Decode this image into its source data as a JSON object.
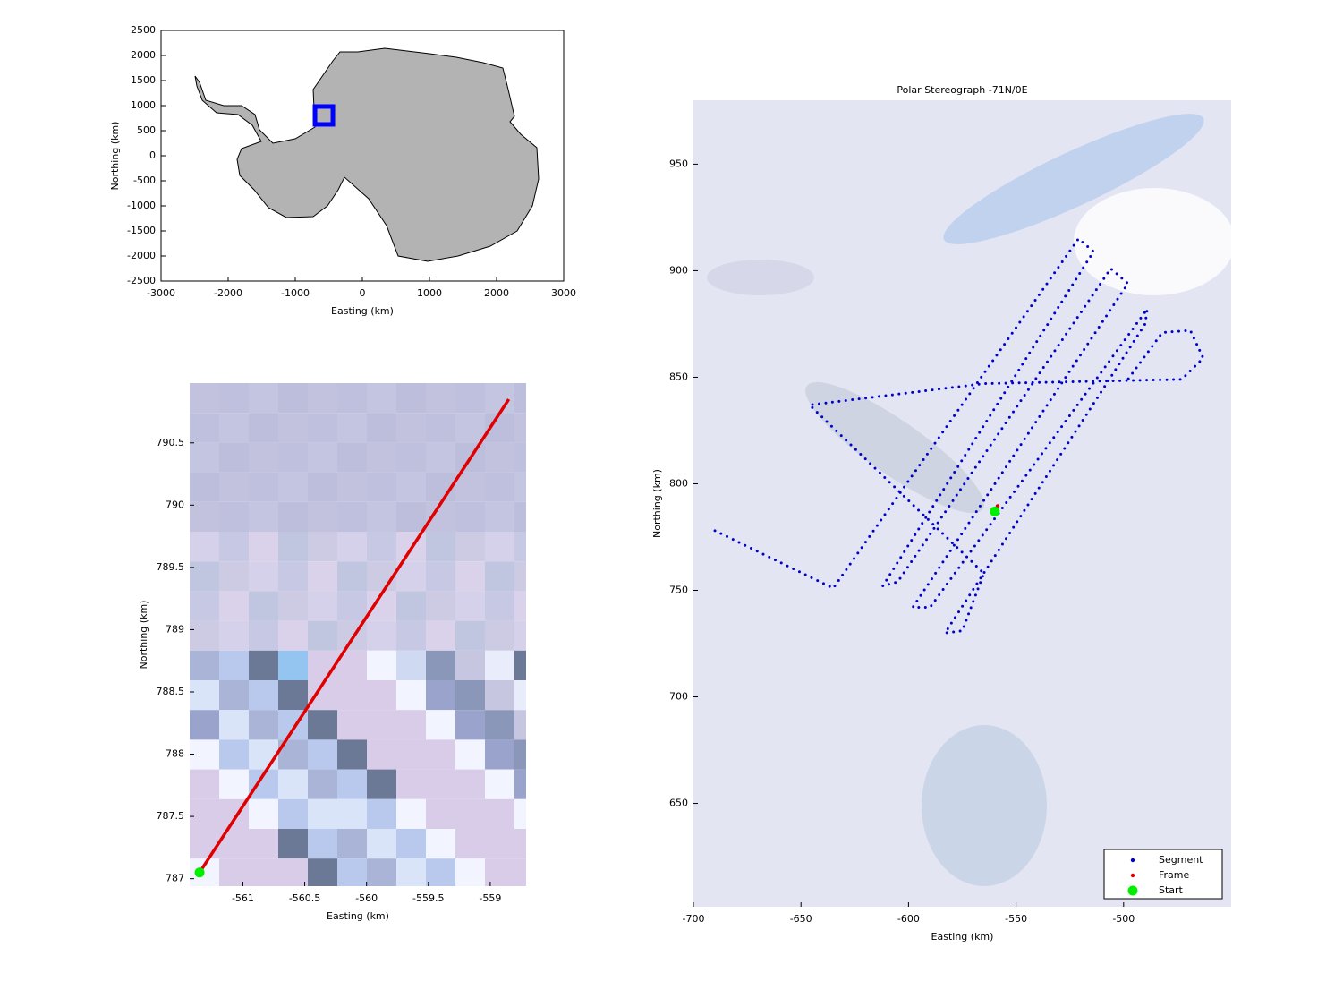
{
  "chart_data": [
    {
      "type": "scatter",
      "xlabel": "Easting (km)",
      "ylabel": "Northing (km)",
      "xlim": [
        -3000,
        3000
      ],
      "ylim": [
        -2500,
        2500
      ],
      "xticks": [
        -3000,
        -2000,
        -1000,
        0,
        1000,
        2000,
        3000
      ],
      "yticks": [
        -2500,
        -2000,
        -1500,
        -1000,
        -500,
        0,
        500,
        1000,
        1500,
        2000,
        2500
      ],
      "series": [
        {
          "color": "#0000ff",
          "marker": "square",
          "x": [
            -573
          ],
          "y": [
            804
          ]
        }
      ]
    },
    {
      "type": "line",
      "xlabel": "Easting (km)",
      "ylabel": "Northing (km)",
      "xlim": [
        -561.43,
        -558.71
      ],
      "ylim": [
        786.94,
        790.98
      ],
      "xticks": [
        -561,
        -560.5,
        -560,
        -559.5,
        -559
      ],
      "yticks": [
        787,
        787.5,
        788,
        788.5,
        789,
        789.5,
        790,
        790.5
      ],
      "series": [
        {
          "color": "#e00000",
          "marker": "line",
          "x": [
            -561.35,
            -558.85
          ],
          "y": [
            787.05,
            790.85
          ]
        },
        {
          "color": "#00ee00",
          "marker": "circle",
          "x": [
            -561.35
          ],
          "y": [
            787.05
          ]
        }
      ]
    },
    {
      "type": "line",
      "title": "Polar Stereograph -71N/0E",
      "xlabel": "Easting (km)",
      "ylabel": "Northing (km)",
      "xlim": [
        -700,
        -450
      ],
      "ylim": [
        601.5,
        980
      ],
      "xticks": [
        -700,
        -650,
        -600,
        -550,
        -500
      ],
      "yticks": [
        650,
        700,
        750,
        800,
        850,
        900,
        950
      ],
      "legend": "lower right",
      "series": [
        {
          "name": "Segment",
          "color": "#0000cc",
          "marker": "dotted",
          "x": [
            -690,
            -635,
            -521,
            -514,
            -612,
            -605,
            -506,
            -498,
            -598,
            -590,
            -489,
            -490,
            -583,
            -575,
            -565,
            -646,
            -565,
            -473,
            -463,
            -469,
            -482,
            -498
          ],
          "y": [
            778,
            751,
            915,
            909,
            752,
            754,
            901,
            894,
            742,
            742,
            882,
            875,
            730,
            731,
            758,
            837,
            847,
            849,
            859,
            872,
            871,
            849
          ]
        },
        {
          "name": "Frame",
          "color": "#e00000",
          "marker": "point",
          "x": [
            -558.6
          ],
          "y": [
            789.5
          ]
        },
        {
          "name": "Start",
          "color": "#00ee00",
          "marker": "circle",
          "x": [
            -559.9
          ],
          "y": [
            787
          ]
        }
      ]
    }
  ]
}
